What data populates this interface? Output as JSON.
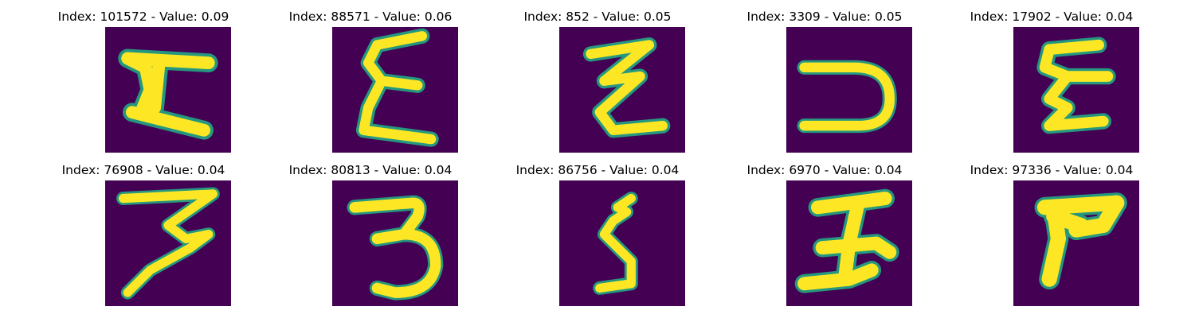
{
  "chart_data": {
    "type": "image-grid",
    "layout": {
      "rows": 2,
      "cols": 5
    },
    "colors": {
      "background": "#440154",
      "stroke_edge": "#22a884",
      "stroke_mid": "#5ec962",
      "stroke_core": "#fde725"
    },
    "panels": [
      {
        "title": "Index: 101572 - Value: 0.09",
        "index": 101572,
        "value": 0.09,
        "glyph": "I-shape"
      },
      {
        "title": "Index: 88571 - Value: 0.06",
        "index": 88571,
        "value": 0.06,
        "glyph": "E-shape"
      },
      {
        "title": "Index: 852 - Value: 0.05",
        "index": 852,
        "value": 0.05,
        "glyph": "Z-zigzag"
      },
      {
        "title": "Index: 3309 - Value: 0.05",
        "index": 3309,
        "value": 0.05,
        "glyph": "reversed-C"
      },
      {
        "title": "Index: 17902 - Value: 0.04",
        "index": 17902,
        "value": 0.04,
        "glyph": "E-shape"
      },
      {
        "title": "Index: 76908 - Value: 0.04",
        "index": 76908,
        "value": 0.04,
        "glyph": "seven-three"
      },
      {
        "title": "Index: 80813 - Value: 0.04",
        "index": 80813,
        "value": 0.04,
        "glyph": "three"
      },
      {
        "title": "Index: 86756 - Value: 0.04",
        "index": 86756,
        "value": 0.04,
        "glyph": "five-like"
      },
      {
        "title": "Index: 6970 - Value: 0.04",
        "index": 6970,
        "value": 0.04,
        "glyph": "I-slanted"
      },
      {
        "title": "Index: 97336 - Value: 0.04",
        "index": 97336,
        "value": 0.04,
        "glyph": "T-blob"
      }
    ]
  }
}
